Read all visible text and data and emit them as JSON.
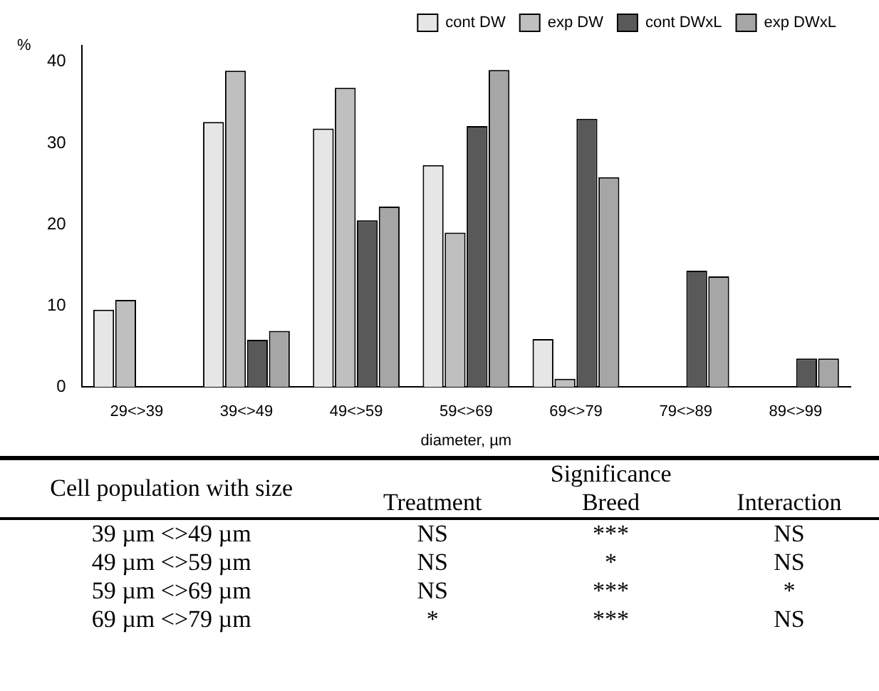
{
  "chart_data": {
    "type": "bar",
    "xlabel": "diameter, µm",
    "ylabel": "%",
    "categories": [
      "29<>39",
      "39<>49",
      "49<>59",
      "59<>69",
      "69<>79",
      "79<>89",
      "89<>99"
    ],
    "series": [
      {
        "name": "cont DW",
        "color": "#e6e6e6",
        "values": [
          9.5,
          32.6,
          31.8,
          27.3,
          5.9,
          null,
          null
        ]
      },
      {
        "name": "exp DW",
        "color": "#bfbfbf",
        "values": [
          10.7,
          38.9,
          36.8,
          19,
          1,
          null,
          null
        ]
      },
      {
        "name": "cont DWxL",
        "color": "#595959",
        "values": [
          null,
          5.8,
          20.5,
          32.1,
          33,
          14.3,
          3.5
        ]
      },
      {
        "name": "exp DWxL",
        "color": "#a6a6a6",
        "values": [
          null,
          6.9,
          22.2,
          39,
          25.8,
          13.6,
          3.5
        ]
      }
    ],
    "ylim": [
      0,
      42
    ],
    "yticks": [
      0,
      10,
      20,
      30,
      40
    ],
    "grid": false,
    "legend": "top right",
    "annotations": [
      "Cell population with size",
      "Significance",
      "Treatment",
      "Breed",
      "Interaction",
      "39 µm <>49 µm",
      "NS",
      "***",
      "NS",
      "49 µm <>59 µm",
      "NS",
      "*",
      "NS",
      "59 µm <>69 µm",
      "NS",
      "***",
      "*",
      "69 µm <>79 µm",
      "*",
      "***",
      "NS"
    ]
  }
}
